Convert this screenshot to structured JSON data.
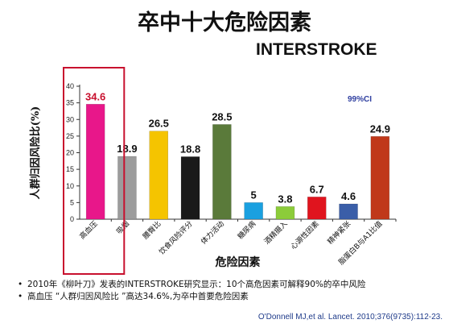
{
  "title": "卒中十大危险因素",
  "subtitle": "INTERSTROKE",
  "ci_label": "99%CI",
  "chart_data": {
    "type": "bar",
    "ylabel": "人群归因风险比(%)",
    "xlabel": "危险因素",
    "ylim": [
      0,
      40
    ],
    "yticks": [
      0,
      5,
      10,
      15,
      20,
      25,
      30,
      35,
      40
    ],
    "grid": false,
    "categories": [
      "高血压",
      "吸烟",
      "腰臀比",
      "饮食风险评分",
      "体力活动",
      "糖尿病",
      "酒精摄入",
      "心源性因素",
      "精神紧张",
      "脂蛋白B与A1比值"
    ],
    "values": [
      34.6,
      18.9,
      26.5,
      18.8,
      28.5,
      5,
      3.8,
      6.7,
      4.6,
      24.9
    ],
    "value_labels": [
      "34.6",
      "18.9",
      "26.5",
      "18.8",
      "28.5",
      "5",
      "3.8",
      "6.7",
      "4.6",
      "24.9"
    ],
    "colors": [
      "#e8178a",
      "#9c9c9c",
      "#f5c400",
      "#1a1a1a",
      "#5a7a3a",
      "#1aa0e0",
      "#8ccc3a",
      "#e0141e",
      "#3a5ea8",
      "#c0381a"
    ],
    "highlight_index": 0,
    "highlight_color": "#c8102e"
  },
  "notes": [
    "2010年《柳叶刀》发表的INTERSTROKE研究显示：10个高危因素可解释90%的卒中风险",
    "高血压 “人群归因风险比 ”高达34.6%,为卒中首要危险因素"
  ],
  "citation": "O'Donnell MJ,et al. Lancet. 2010;376(9735):112-23."
}
